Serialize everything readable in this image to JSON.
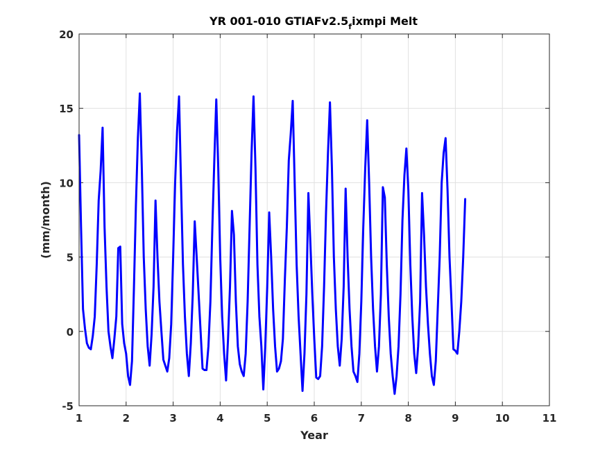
{
  "chart_data": {
    "type": "line",
    "title": "YR 001-010 GTIAFv2.5",
    "title_subscript": "f",
    "title_suffix": "ixmpi Melt",
    "xlabel": "Year",
    "ylabel": "(mm/month)",
    "xlim": [
      1,
      11
    ],
    "ylim": [
      -5,
      20
    ],
    "xticks": [
      1,
      2,
      3,
      4,
      5,
      6,
      7,
      8,
      9,
      10,
      11
    ],
    "yticks": [
      -5,
      0,
      5,
      10,
      15,
      20
    ],
    "xtick_labels": [
      "1",
      "2",
      "3",
      "4",
      "5",
      "6",
      "7",
      "8",
      "9",
      "10",
      "11"
    ],
    "ytick_labels": [
      "-5",
      "0",
      "5",
      "10",
      "15",
      "20"
    ],
    "grid": true,
    "line_color": "#0000ff",
    "series": [
      {
        "x_start": 1.0,
        "x_step": 0.04167,
        "values": [
          13.2,
          7.0,
          1.5,
          0.2,
          -0.8,
          -1.1,
          -1.2,
          -0.3,
          1.0,
          4.5,
          8.8,
          10.8,
          13.7,
          7.0,
          3.0,
          0.0,
          -1.0,
          -1.8,
          -0.5,
          1.0,
          5.6,
          5.7,
          0.5,
          -0.8,
          -1.5,
          -3.0,
          -3.6,
          -2.0,
          3.0,
          8.5,
          13.0,
          16.0,
          11.0,
          5.0,
          1.5,
          -1.0,
          -2.3,
          -0.2,
          3.0,
          8.8,
          5.0,
          2.0,
          0.0,
          -1.9,
          -2.3,
          -2.7,
          -1.8,
          0.5,
          5.0,
          10.0,
          13.5,
          15.8,
          10.0,
          4.5,
          1.0,
          -1.5,
          -3.0,
          -0.8,
          2.5,
          7.4,
          5.0,
          2.5,
          0.0,
          -2.5,
          -2.6,
          -2.6,
          -1.0,
          2.0,
          7.0,
          11.5,
          15.6,
          11.0,
          5.0,
          1.0,
          -1.5,
          -3.3,
          -0.5,
          3.0,
          8.1,
          6.5,
          2.0,
          -1.0,
          -2.2,
          -2.7,
          -3.0,
          -1.5,
          2.0,
          7.0,
          12.0,
          15.8,
          11.0,
          4.5,
          1.0,
          -1.0,
          -3.9,
          -1.0,
          3.0,
          8.0,
          5.0,
          1.5,
          -1.0,
          -2.7,
          -2.5,
          -2.0,
          -0.5,
          3.5,
          7.0,
          11.5,
          13.3,
          15.5,
          10.0,
          4.5,
          1.0,
          -1.5,
          -4.0,
          -1.5,
          2.5,
          9.3,
          6.0,
          2.5,
          -0.5,
          -3.1,
          -3.2,
          -3.0,
          -1.0,
          3.0,
          8.0,
          12.0,
          15.4,
          11.0,
          5.0,
          1.5,
          -1.0,
          -2.3,
          -0.5,
          3.0,
          9.6,
          5.0,
          1.5,
          -1.0,
          -2.7,
          -3.0,
          -3.4,
          -1.5,
          2.0,
          7.0,
          11.0,
          14.2,
          10.0,
          5.0,
          1.5,
          -1.0,
          -2.7,
          -1.0,
          2.5,
          9.7,
          9.0,
          4.5,
          1.0,
          -1.5,
          -3.0,
          -4.2,
          -3.0,
          -1.0,
          2.5,
          7.5,
          10.5,
          12.3,
          9.5,
          4.5,
          1.0,
          -1.5,
          -2.8,
          -1.0,
          2.0,
          9.3,
          6.5,
          3.0,
          0.5,
          -1.5,
          -3.0,
          -3.6,
          -2.0,
          1.5,
          5.0,
          10.0,
          12.0,
          13.0,
          9.5,
          5.0,
          2.0,
          -1.2,
          -1.3,
          -1.5,
          0.0,
          2.0,
          5.0,
          8.9
        ]
      }
    ]
  }
}
